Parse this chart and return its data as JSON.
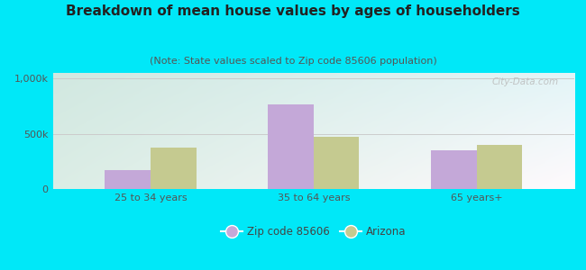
{
  "title": "Breakdown of mean house values by ages of householders",
  "subtitle": "(Note: State values scaled to Zip code 85606 population)",
  "categories": [
    "25 to 34 years",
    "35 to 64 years",
    "65 years+"
  ],
  "zip_values": [
    175000,
    762000,
    350000
  ],
  "az_values": [
    375000,
    470000,
    400000
  ],
  "zip_color": "#c4a8d8",
  "az_color": "#c5ca90",
  "ylim": [
    0,
    1050000
  ],
  "yticks": [
    0,
    500000,
    1000000
  ],
  "ytick_labels": [
    "0",
    "500k",
    "1,000k"
  ],
  "background_outer": "#00e8f8",
  "grid_color": "#cccccc",
  "watermark": "City-Data.com",
  "legend_zip_label": "Zip code 85606",
  "legend_az_label": "Arizona",
  "bar_width": 0.28,
  "title_fontsize": 11,
  "subtitle_fontsize": 8,
  "tick_fontsize": 8
}
